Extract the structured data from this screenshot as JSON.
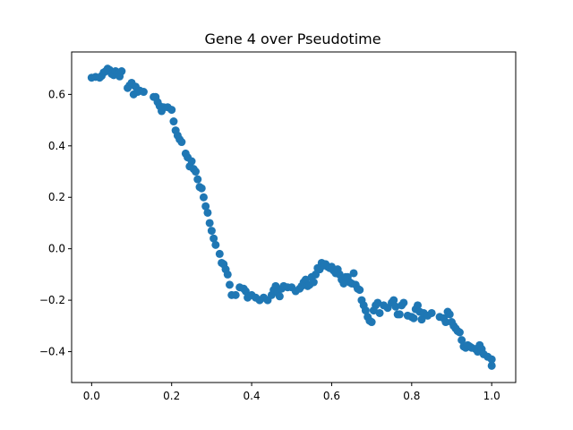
{
  "chart_data": {
    "type": "scatter",
    "title": "Gene 4 over Pseudotime",
    "xlabel": "",
    "ylabel": "",
    "xlim": [
      -0.05,
      1.06
    ],
    "ylim": [
      -0.52,
      0.765
    ],
    "xticks": [
      "0.0",
      "0.2",
      "0.4",
      "0.6",
      "0.8",
      "1.0"
    ],
    "yticks": [
      "−0.4",
      "−0.2",
      "0.0",
      "0.2",
      "0.4",
      "0.6"
    ],
    "grid": false,
    "legend": "none",
    "marker_color": "#1f77b4",
    "series": [
      {
        "x": [
          0.0,
          0.01,
          0.02,
          0.025,
          0.03,
          0.035,
          0.04,
          0.045,
          0.05,
          0.055,
          0.06,
          0.065,
          0.07,
          0.075,
          0.09,
          0.095,
          0.1,
          0.105,
          0.11,
          0.115,
          0.12,
          0.13,
          0.155,
          0.16,
          0.165,
          0.17,
          0.175,
          0.18,
          0.19,
          0.2,
          0.205,
          0.21,
          0.215,
          0.22,
          0.225,
          0.235,
          0.24,
          0.245,
          0.25,
          0.255,
          0.26,
          0.265,
          0.27,
          0.275,
          0.28,
          0.285,
          0.29,
          0.295,
          0.3,
          0.305,
          0.31,
          0.32,
          0.325,
          0.33,
          0.335,
          0.34,
          0.345,
          0.35,
          0.36,
          0.37,
          0.38,
          0.385,
          0.39,
          0.4,
          0.41,
          0.42,
          0.43,
          0.44,
          0.45,
          0.455,
          0.46,
          0.465,
          0.47,
          0.475,
          0.48,
          0.49,
          0.5,
          0.51,
          0.52,
          0.525,
          0.53,
          0.535,
          0.54,
          0.545,
          0.55,
          0.555,
          0.56,
          0.565,
          0.57,
          0.575,
          0.58,
          0.585,
          0.59,
          0.595,
          0.6,
          0.605,
          0.61,
          0.615,
          0.62,
          0.625,
          0.63,
          0.635,
          0.64,
          0.645,
          0.65,
          0.655,
          0.66,
          0.665,
          0.67,
          0.675,
          0.68,
          0.685,
          0.69,
          0.695,
          0.7,
          0.705,
          0.71,
          0.715,
          0.72,
          0.73,
          0.74,
          0.75,
          0.755,
          0.76,
          0.765,
          0.77,
          0.775,
          0.78,
          0.79,
          0.8,
          0.805,
          0.81,
          0.815,
          0.82,
          0.825,
          0.83,
          0.84,
          0.85,
          0.87,
          0.88,
          0.885,
          0.89,
          0.895,
          0.9,
          0.905,
          0.91,
          0.915,
          0.92,
          0.925,
          0.93,
          0.935,
          0.94,
          0.945,
          0.95,
          0.96,
          0.965,
          0.97,
          0.975,
          0.98,
          0.99,
          1.0,
          1.0
        ],
        "y": [
          0.665,
          0.668,
          0.665,
          0.672,
          0.685,
          0.69,
          0.7,
          0.695,
          0.68,
          0.675,
          0.69,
          0.68,
          0.67,
          0.69,
          0.625,
          0.635,
          0.645,
          0.6,
          0.63,
          0.61,
          0.615,
          0.61,
          0.59,
          0.59,
          0.57,
          0.555,
          0.535,
          0.55,
          0.55,
          0.54,
          0.495,
          0.46,
          0.44,
          0.425,
          0.415,
          0.37,
          0.355,
          0.32,
          0.34,
          0.31,
          0.3,
          0.27,
          0.24,
          0.235,
          0.2,
          0.165,
          0.14,
          0.1,
          0.07,
          0.04,
          0.015,
          -0.02,
          -0.055,
          -0.06,
          -0.08,
          -0.1,
          -0.14,
          -0.18,
          -0.18,
          -0.15,
          -0.155,
          -0.165,
          -0.19,
          -0.18,
          -0.19,
          -0.2,
          -0.19,
          -0.2,
          -0.18,
          -0.16,
          -0.145,
          -0.17,
          -0.185,
          -0.155,
          -0.145,
          -0.15,
          -0.15,
          -0.165,
          -0.155,
          -0.145,
          -0.13,
          -0.12,
          -0.145,
          -0.14,
          -0.11,
          -0.13,
          -0.1,
          -0.075,
          -0.08,
          -0.055,
          -0.065,
          -0.06,
          -0.07,
          -0.075,
          -0.07,
          -0.085,
          -0.095,
          -0.08,
          -0.1,
          -0.12,
          -0.135,
          -0.11,
          -0.11,
          -0.13,
          -0.135,
          -0.095,
          -0.14,
          -0.155,
          -0.16,
          -0.2,
          -0.22,
          -0.24,
          -0.265,
          -0.28,
          -0.285,
          -0.24,
          -0.22,
          -0.21,
          -0.25,
          -0.22,
          -0.23,
          -0.21,
          -0.2,
          -0.225,
          -0.255,
          -0.255,
          -0.22,
          -0.21,
          -0.26,
          -0.265,
          -0.27,
          -0.235,
          -0.22,
          -0.245,
          -0.275,
          -0.25,
          -0.26,
          -0.25,
          -0.265,
          -0.27,
          -0.285,
          -0.245,
          -0.255,
          -0.285,
          -0.3,
          -0.31,
          -0.32,
          -0.325,
          -0.355,
          -0.38,
          -0.385,
          -0.375,
          -0.38,
          -0.385,
          -0.39,
          -0.4,
          -0.375,
          -0.39,
          -0.41,
          -0.42,
          -0.43,
          -0.455
        ]
      }
    ]
  }
}
